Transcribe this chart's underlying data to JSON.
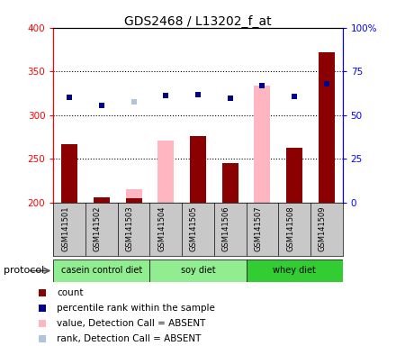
{
  "title": "GDS2468 / L13202_f_at",
  "samples": [
    "GSM141501",
    "GSM141502",
    "GSM141503",
    "GSM141504",
    "GSM141505",
    "GSM141506",
    "GSM141507",
    "GSM141508",
    "GSM141509"
  ],
  "count_values": [
    267,
    206,
    205,
    null,
    276,
    245,
    null,
    263,
    372
  ],
  "rank_values": [
    320,
    311,
    null,
    322,
    323,
    319,
    334,
    321,
    336
  ],
  "absent_value_bars": [
    null,
    null,
    215,
    271,
    null,
    null,
    334,
    null,
    null
  ],
  "absent_rank_values": [
    null,
    null,
    315,
    null,
    null,
    null,
    null,
    null,
    null
  ],
  "protocol_labels": [
    "casein control diet",
    "soy diet",
    "whey diet"
  ],
  "protocol_ranges": [
    [
      0,
      3
    ],
    [
      3,
      6
    ],
    [
      6,
      9
    ]
  ],
  "protocol_colors": [
    "#90EE90",
    "#90EE90",
    "#32CD32"
  ],
  "ylim_left": [
    200,
    400
  ],
  "ylim_right": [
    0,
    100
  ],
  "yticks_left": [
    200,
    250,
    300,
    350,
    400
  ],
  "yticks_right": [
    0,
    25,
    50,
    75,
    100
  ],
  "color_count": "#8B0000",
  "color_rank": "#00008B",
  "color_absent_value": "#FFB6C1",
  "color_absent_rank": "#B0C4DE",
  "bar_width": 0.5,
  "protocol_bg": "#C8C8C8",
  "bg_plot": "#FFFFFF"
}
